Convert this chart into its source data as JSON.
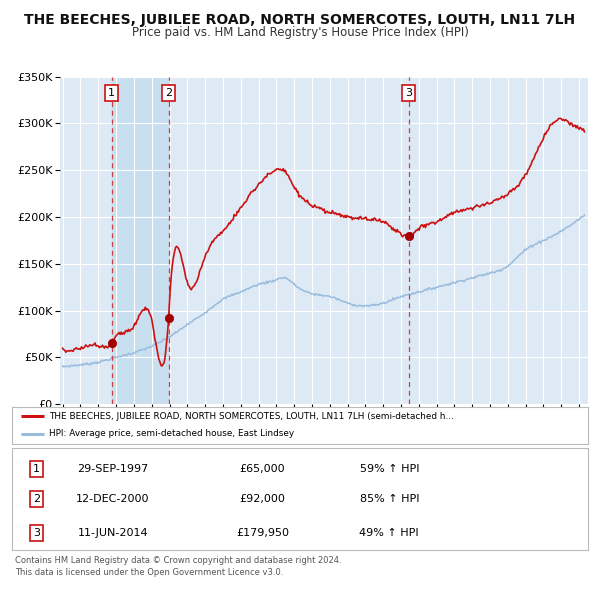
{
  "title": "THE BEECHES, JUBILEE ROAD, NORTH SOMERCOTES, LOUTH, LN11 7LH",
  "subtitle": "Price paid vs. HM Land Registry's House Price Index (HPI)",
  "ylim": [
    0,
    350000
  ],
  "yticks": [
    0,
    50000,
    100000,
    150000,
    200000,
    250000,
    300000,
    350000
  ],
  "ytick_labels": [
    "£0",
    "£50K",
    "£100K",
    "£150K",
    "£200K",
    "£250K",
    "£300K",
    "£350K"
  ],
  "background_color": "#ffffff",
  "plot_bg_color": "#ddeaf5",
  "grid_color": "#ffffff",
  "sale_dates": [
    1997.747,
    2000.945,
    2014.441
  ],
  "sale_prices": [
    65000,
    92000,
    179950
  ],
  "sale_labels": [
    "1",
    "2",
    "3"
  ],
  "sale_color": "#aa0000",
  "hpi_line_color": "#99bbdd",
  "price_line_color": "#cc1111",
  "shade_color": "#c8dff0",
  "legend_line1": "THE BEECHES, JUBILEE ROAD, NORTH SOMERCOTES, LOUTH, LN11 7LH (semi-detached h...",
  "legend_line2": "HPI: Average price, semi-detached house, East Lindsey",
  "table_rows": [
    [
      "1",
      "29-SEP-1997",
      "£65,000",
      "59% ↑ HPI"
    ],
    [
      "2",
      "12-DEC-2000",
      "£92,000",
      "85% ↑ HPI"
    ],
    [
      "3",
      "11-JUN-2014",
      "£179,950",
      "49% ↑ HPI"
    ]
  ],
  "footnote1": "Contains HM Land Registry data © Crown copyright and database right 2024.",
  "footnote2": "This data is licensed under the Open Government Licence v3.0.",
  "title_fontsize": 10.0,
  "subtitle_fontsize": 8.5,
  "hpi_x": [
    1995,
    1996,
    1997,
    1998,
    1999,
    2000,
    2001,
    2002,
    2003,
    2004,
    2005,
    2006,
    2007,
    2007.5,
    2008,
    2009,
    2010,
    2011,
    2012,
    2013,
    2014,
    2015,
    2016,
    2017,
    2018,
    2019,
    2020,
    2021,
    2022,
    2023,
    2024.3
  ],
  "hpi_y": [
    40000,
    42000,
    45000,
    50000,
    55000,
    62000,
    72000,
    85000,
    98000,
    112000,
    120000,
    128000,
    133000,
    135000,
    128000,
    118000,
    115000,
    108000,
    105000,
    108000,
    115000,
    120000,
    125000,
    130000,
    135000,
    140000,
    148000,
    165000,
    175000,
    185000,
    202000
  ],
  "red_x": [
    1995,
    1996,
    1997,
    1997.747,
    1998,
    1999,
    2000,
    2000.945,
    2001,
    2002,
    2003,
    2004,
    2005,
    2006,
    2007,
    2007.5,
    2008,
    2009,
    2010,
    2011,
    2012,
    2013,
    2014,
    2014.441,
    2015,
    2016,
    2017,
    2018,
    2019,
    2020,
    2021,
    2022,
    2022.5,
    2023,
    2023.5,
    2024,
    2024.3
  ],
  "red_y": [
    58000,
    60000,
    63000,
    65000,
    72000,
    83000,
    90000,
    92000,
    110000,
    130000,
    158000,
    185000,
    210000,
    235000,
    250000,
    248000,
    232000,
    212000,
    205000,
    200000,
    198000,
    195000,
    182000,
    179950,
    188000,
    195000,
    205000,
    210000,
    215000,
    225000,
    245000,
    285000,
    300000,
    305000,
    300000,
    295000,
    293000
  ]
}
